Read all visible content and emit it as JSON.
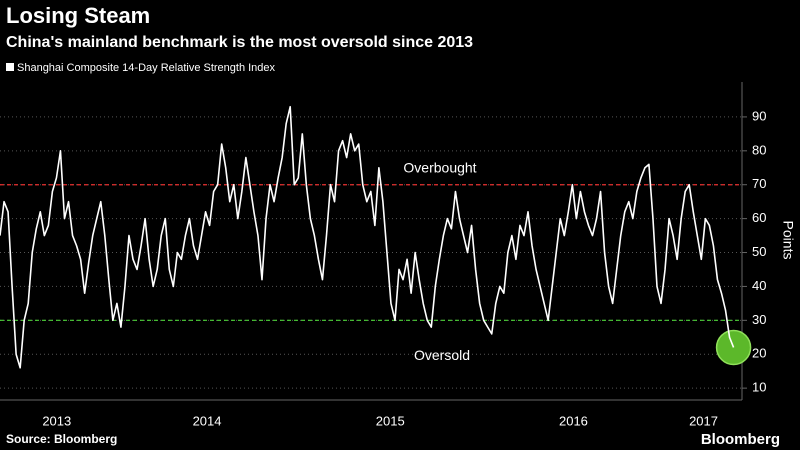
{
  "chart_data": {
    "type": "line",
    "title": "Losing Steam",
    "subtitle": "China's mainland benchmark is the most oversold since 2013",
    "y_label": "Points",
    "source": "Source: Bloomberg",
    "brand": "Bloomberg",
    "x": [
      2013.37,
      2013.392,
      2013.414,
      2013.436,
      2013.458,
      2013.48,
      2013.502,
      2013.524,
      2013.546,
      2013.568,
      2013.59,
      2013.612,
      2013.634,
      2013.656,
      2013.678,
      2013.7,
      2013.722,
      2013.744,
      2013.766,
      2013.788,
      2013.81,
      2013.832,
      2013.854,
      2013.876,
      2013.898,
      2013.92,
      2013.942,
      2013.964,
      2013.986,
      2014.008,
      2014.03,
      2014.052,
      2014.074,
      2014.096,
      2014.118,
      2014.14,
      2014.162,
      2014.184,
      2014.206,
      2014.228,
      2014.25,
      2014.272,
      2014.294,
      2014.316,
      2014.338,
      2014.36,
      2014.382,
      2014.404,
      2014.426,
      2014.448,
      2014.47,
      2014.492,
      2014.514,
      2014.536,
      2014.558,
      2014.58,
      2014.602,
      2014.624,
      2014.646,
      2014.668,
      2014.69,
      2014.712,
      2014.734,
      2014.756,
      2014.778,
      2014.8,
      2014.822,
      2014.844,
      2014.866,
      2014.888,
      2014.91,
      2014.932,
      2014.954,
      2014.976,
      2014.998,
      2015.02,
      2015.042,
      2015.064,
      2015.086,
      2015.108,
      2015.13,
      2015.152,
      2015.174,
      2015.196,
      2015.218,
      2015.24,
      2015.262,
      2015.284,
      2015.306,
      2015.328,
      2015.35,
      2015.372,
      2015.394,
      2015.416,
      2015.438,
      2015.46,
      2015.482,
      2015.504,
      2015.526,
      2015.548,
      2015.57,
      2015.592,
      2015.614,
      2015.636,
      2015.658,
      2015.68,
      2015.702,
      2015.724,
      2015.746,
      2015.768,
      2015.79,
      2015.812,
      2015.834,
      2015.856,
      2015.878,
      2015.9,
      2015.922,
      2015.944,
      2015.966,
      2015.988,
      2016.01,
      2016.032,
      2016.054,
      2016.076,
      2016.098,
      2016.12,
      2016.142,
      2016.164,
      2016.186,
      2016.208,
      2016.23,
      2016.252,
      2016.274,
      2016.296,
      2016.318,
      2016.34,
      2016.362,
      2016.384,
      2016.406,
      2016.428,
      2016.45,
      2016.472,
      2016.494,
      2016.516,
      2016.538,
      2016.56,
      2016.582,
      2016.604,
      2016.626,
      2016.648,
      2016.67,
      2016.692,
      2016.714,
      2016.736,
      2016.758,
      2016.78,
      2016.802,
      2016.824,
      2016.846,
      2016.868,
      2016.89,
      2016.912,
      2016.934,
      2016.956,
      2016.978,
      2017.0,
      2017.022,
      2017.044,
      2017.066,
      2017.088,
      2017.11,
      2017.132,
      2017.154,
      2017.176,
      2017.198,
      2017.22,
      2017.242,
      2017.264,
      2017.286,
      2017.308,
      2017.33,
      2017.352,
      2017.374
    ],
    "series": [
      {
        "name": "Shanghai Composite 14-Day Relative Strength Index",
        "color": "#ffffff",
        "values": [
          55,
          65,
          62,
          40,
          20,
          16,
          30,
          35,
          50,
          57,
          62,
          55,
          58,
          68,
          72,
          80,
          60,
          65,
          55,
          52,
          48,
          38,
          47,
          55,
          60,
          65,
          55,
          42,
          30,
          35,
          28,
          40,
          55,
          48,
          45,
          52,
          60,
          48,
          40,
          45,
          55,
          60,
          45,
          40,
          50,
          48,
          55,
          60,
          52,
          48,
          55,
          62,
          58,
          68,
          70,
          82,
          75,
          65,
          70,
          60,
          68,
          78,
          70,
          62,
          55,
          42,
          60,
          70,
          65,
          72,
          78,
          88,
          93,
          70,
          72,
          85,
          70,
          60,
          55,
          48,
          42,
          55,
          70,
          65,
          80,
          83,
          78,
          85,
          80,
          82,
          70,
          65,
          68,
          58,
          75,
          65,
          50,
          35,
          30,
          45,
          42,
          48,
          38,
          50,
          42,
          35,
          30,
          28,
          40,
          48,
          55,
          60,
          57,
          68,
          60,
          55,
          50,
          58,
          45,
          35,
          30,
          28,
          26,
          35,
          40,
          38,
          50,
          55,
          48,
          58,
          55,
          62,
          52,
          45,
          40,
          35,
          30,
          40,
          50,
          60,
          55,
          62,
          70,
          60,
          68,
          62,
          58,
          55,
          60,
          68,
          50,
          40,
          35,
          45,
          55,
          62,
          65,
          60,
          68,
          72,
          75,
          76,
          60,
          40,
          35,
          45,
          60,
          55,
          48,
          60,
          68,
          70,
          62,
          55,
          48,
          60,
          58,
          52,
          42,
          38,
          33,
          25,
          22
        ]
      }
    ],
    "xlim": [
      2013.37,
      2017.42
    ],
    "ylim": [
      6.5,
      100.3
    ],
    "xticks": [
      {
        "value": 2013.68,
        "label": "2013"
      },
      {
        "value": 2014.5,
        "label": "2014"
      },
      {
        "value": 2015.5,
        "label": "2015"
      },
      {
        "value": 2016.5,
        "label": "2016"
      },
      {
        "value": 2017.21,
        "label": "2017"
      }
    ],
    "yticks": [
      10,
      20,
      30,
      40,
      50,
      60,
      70,
      80,
      90
    ],
    "grid": true,
    "reference_lines": [
      {
        "value": 70,
        "label": "Overbought",
        "color": "#e8312f"
      },
      {
        "value": 30,
        "label": "Oversold",
        "color": "#4cd137"
      }
    ],
    "highlight_color": "#5cb82a"
  }
}
